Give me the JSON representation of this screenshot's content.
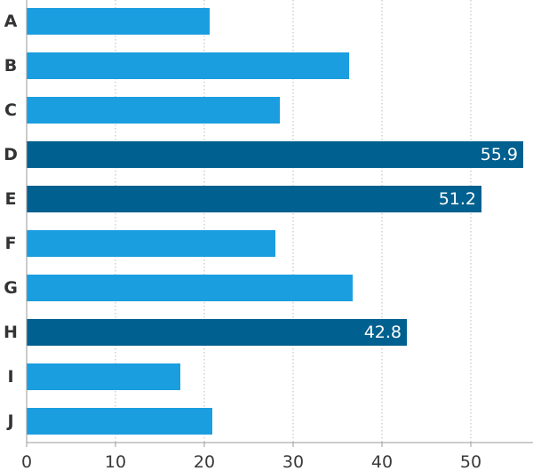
{
  "chart_data": {
    "type": "bar",
    "orientation": "horizontal",
    "categories": [
      "A",
      "B",
      "C",
      "D",
      "E",
      "F",
      "G",
      "H",
      "I",
      "J"
    ],
    "values": [
      20.6,
      36.3,
      28.5,
      55.9,
      51.2,
      28.0,
      36.7,
      42.8,
      17.3,
      20.9
    ],
    "highlighted": [
      false,
      false,
      false,
      true,
      true,
      false,
      false,
      true,
      false,
      false
    ],
    "data_labels": {
      "D": "55.9",
      "E": "51.2",
      "H": "42.8"
    },
    "xlim": [
      0,
      57
    ],
    "xticks": [
      "0",
      "10",
      "20",
      "30",
      "40",
      "50"
    ],
    "xtick_values": [
      0,
      10,
      20,
      30,
      40,
      50
    ],
    "title": "",
    "xlabel": "",
    "ylabel": "",
    "grid": "vertical dotted",
    "legend": "none",
    "colors": {
      "bar": "#1a9ee0",
      "highlight": "#00608f",
      "grid": "#b9b9b9",
      "axis": "#9a9a9a"
    }
  }
}
